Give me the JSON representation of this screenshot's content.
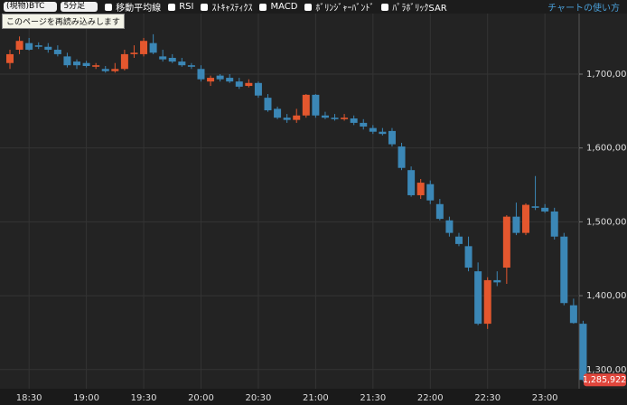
{
  "toolbar": {
    "symbol": "(現物)BTC",
    "interval": "5分足",
    "options": [
      "移動平均線",
      "RSI",
      "ｽﾄｷｬｽﾃｨｸｽ",
      "MACD",
      "ﾎﾞﾘﾝｼﾞｬｰﾊﾞﾝﾄﾞ",
      "ﾊﾟﾗﾎﾞﾘｯｸSAR"
    ],
    "help_link": "チャートの使い方"
  },
  "tooltip": "このページを再読み込みします",
  "chart_data": {
    "type": "candlestick",
    "categories": [
      null,
      null,
      "18:30",
      null,
      null,
      null,
      null,
      null,
      "19:00",
      null,
      null,
      null,
      null,
      null,
      "19:30",
      null,
      null,
      null,
      null,
      null,
      "20:00",
      null,
      null,
      null,
      null,
      null,
      "20:30",
      null,
      null,
      null,
      null,
      null,
      "21:00",
      null,
      null,
      null,
      null,
      null,
      "21:30",
      null,
      null,
      null,
      null,
      null,
      "22:00",
      null,
      null,
      null,
      null,
      null,
      "22:30",
      null,
      null,
      null,
      null,
      null,
      "23:00",
      null,
      null,
      null,
      null
    ],
    "open": [
      1715000,
      1733000,
      1742000,
      1739000,
      1737000,
      1733000,
      1724000,
      1717000,
      1715000,
      1710000,
      1707000,
      1704000,
      1707000,
      1727000,
      1727000,
      1742000,
      1724000,
      1722000,
      1717000,
      1712000,
      1707000,
      1690000,
      1698000,
      1695000,
      1690000,
      1684000,
      1688000,
      1668000,
      1653000,
      1641000,
      1638000,
      1644000,
      1672000,
      1644000,
      1641000,
      1639000,
      1640000,
      1634000,
      1627000,
      1622000,
      1623000,
      1602000,
      1570000,
      1536000,
      1551000,
      1524000,
      1502000,
      1480000,
      1467000,
      1433000,
      1362000,
      1421000,
      1438000,
      1507000,
      1485000,
      1521000,
      1519000,
      1514000,
      1480000,
      1387000,
      1362000
    ],
    "high": [
      1733000,
      1751000,
      1749000,
      1743000,
      1742000,
      1739000,
      1729000,
      1720000,
      1718000,
      1715000,
      1711000,
      1715000,
      1733000,
      1739000,
      1749000,
      1754000,
      1733000,
      1727000,
      1722000,
      1715000,
      1712000,
      1698000,
      1700000,
      1700000,
      1695000,
      1693000,
      1690000,
      1673000,
      1656000,
      1646000,
      1653000,
      1673000,
      1673000,
      1649000,
      1646000,
      1646000,
      1644000,
      1639000,
      1631000,
      1627000,
      1627000,
      1607000,
      1575000,
      1558000,
      1556000,
      1531000,
      1507000,
      1485000,
      1480000,
      1445000,
      1425000,
      1433000,
      1509000,
      1526000,
      1525000,
      1562000,
      1524000,
      1519000,
      1485000,
      1396000,
      1366000
    ],
    "low": [
      1707000,
      1727000,
      1732000,
      1734000,
      1729000,
      1724000,
      1709000,
      1707000,
      1709000,
      1707000,
      1702000,
      1702000,
      1705000,
      1722000,
      1724000,
      1727000,
      1717000,
      1715000,
      1710000,
      1707000,
      1690000,
      1684000,
      1690000,
      1688000,
      1680000,
      1682000,
      1668000,
      1649000,
      1639000,
      1634000,
      1634000,
      1641000,
      1641000,
      1639000,
      1637000,
      1637000,
      1631000,
      1625000,
      1619000,
      1617000,
      1602000,
      1570000,
      1534000,
      1531000,
      1524000,
      1502000,
      1480000,
      1467000,
      1433000,
      1360000,
      1355000,
      1413000,
      1416000,
      1482000,
      1482000,
      1516000,
      1512000,
      1476000,
      1387000,
      1362000,
      1284000
    ],
    "close": [
      1727000,
      1745000,
      1733000,
      1737000,
      1733000,
      1727000,
      1712000,
      1712000,
      1711000,
      1712000,
      1704000,
      1707000,
      1727000,
      1729000,
      1745000,
      1729000,
      1720000,
      1717000,
      1712000,
      1710000,
      1693000,
      1695000,
      1693000,
      1690000,
      1683000,
      1688000,
      1671000,
      1651000,
      1641000,
      1638000,
      1644000,
      1672000,
      1644000,
      1641000,
      1639000,
      1641000,
      1634000,
      1629000,
      1622000,
      1619000,
      1605000,
      1573000,
      1536000,
      1553000,
      1529000,
      1504000,
      1485000,
      1470000,
      1438000,
      1362000,
      1421000,
      1418000,
      1507000,
      1485000,
      1523000,
      1519000,
      1514000,
      1480000,
      1390000,
      1363000,
      1285922
    ],
    "up_color": "#e4572e",
    "down_color": "#3b87b6",
    "ylim": [
      1274000,
      1782000
    ],
    "yticks": [
      {
        "value": 1300000,
        "label": "1,300,000"
      },
      {
        "value": 1400000,
        "label": "1,400,000"
      },
      {
        "value": 1500000,
        "label": "1,500,000"
      },
      {
        "value": 1600000,
        "label": "1,600,000"
      },
      {
        "value": 1700000,
        "label": "1,700,000"
      }
    ],
    "grid": true,
    "last_price": {
      "value": 1285922,
      "label": "1,285,922"
    }
  }
}
